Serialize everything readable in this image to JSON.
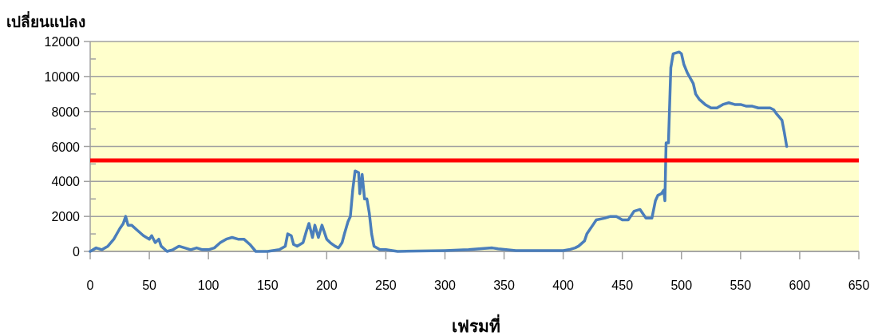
{
  "chart_data": {
    "type": "line",
    "xlabel": "เฟรมที่",
    "ylabel": "เปลี่ยนแปลง",
    "xlim": [
      0,
      650
    ],
    "xticks": [
      0,
      50,
      100,
      150,
      200,
      250,
      300,
      350,
      400,
      450,
      500,
      550,
      600,
      650
    ],
    "ylim": [
      0,
      12000
    ],
    "yticks": [
      0,
      {
        "value": 1000,
        "label": null
      },
      2000,
      {
        "value": 3000,
        "label": null
      },
      4000,
      {
        "value": 5000,
        "label": null
      },
      6000,
      {
        "value": 7000,
        "label": null
      },
      8000,
      {
        "value": 9000,
        "label": null
      },
      10000,
      {
        "value": 11000,
        "label": null
      },
      12000
    ],
    "grid": "y",
    "marker": "none",
    "line_style": "solid",
    "ref_lines": [
      {
        "axis": "y",
        "value": 5200,
        "color": "#ff0000"
      }
    ],
    "series": [
      {
        "color": "#4a7ebb",
        "x": [
          0,
          5,
          10,
          15,
          20,
          25,
          28,
          30,
          32,
          35,
          40,
          45,
          50,
          52,
          55,
          58,
          60,
          65,
          70,
          75,
          80,
          85,
          90,
          95,
          100,
          105,
          110,
          115,
          120,
          125,
          130,
          135,
          140,
          150,
          160,
          165,
          167,
          170,
          172,
          175,
          180,
          183,
          185,
          188,
          190,
          193,
          196,
          200,
          203,
          207,
          210,
          213,
          215,
          218,
          220,
          222,
          224,
          227,
          228,
          230,
          232,
          234,
          236,
          238,
          240,
          245,
          250,
          260,
          300,
          320,
          340,
          345,
          360,
          400,
          405,
          410,
          413,
          418,
          420,
          425,
          428,
          435,
          440,
          445,
          450,
          455,
          460,
          465,
          470,
          475,
          478,
          480,
          483,
          485,
          486,
          487,
          489,
          491,
          493,
          498,
          500,
          502,
          505,
          510,
          512,
          515,
          520,
          525,
          530,
          535,
          540,
          545,
          550,
          555,
          560,
          565,
          570,
          575,
          578,
          580,
          585,
          587,
          589
        ],
        "values": [
          0,
          200,
          100,
          300,
          700,
          1300,
          1600,
          2000,
          1500,
          1500,
          1200,
          900,
          700,
          900,
          500,
          700,
          300,
          0,
          100,
          300,
          200,
          100,
          200,
          100,
          100,
          200,
          500,
          700,
          800,
          700,
          700,
          400,
          0,
          0,
          100,
          300,
          1000,
          900,
          400,
          300,
          500,
          1200,
          1600,
          800,
          1500,
          800,
          1500,
          700,
          500,
          300,
          200,
          500,
          1000,
          1700,
          2000,
          3500,
          4600,
          4500,
          3300,
          4400,
          3000,
          3000,
          2200,
          1000,
          300,
          100,
          100,
          0,
          50,
          100,
          200,
          150,
          50,
          50,
          100,
          200,
          300,
          600,
          1000,
          1500,
          1800,
          1900,
          2000,
          2000,
          1800,
          1800,
          2300,
          2400,
          1900,
          1900,
          2900,
          3200,
          3300,
          3500,
          2900,
          6200,
          6200,
          10500,
          11300,
          11400,
          11300,
          10700,
          10200,
          9600,
          9000,
          8700,
          8400,
          8200,
          8200,
          8400,
          8500,
          8400,
          8400,
          8300,
          8300,
          8200,
          8200,
          8200,
          8100,
          7900,
          7500,
          6800,
          6000
        ]
      }
    ]
  }
}
